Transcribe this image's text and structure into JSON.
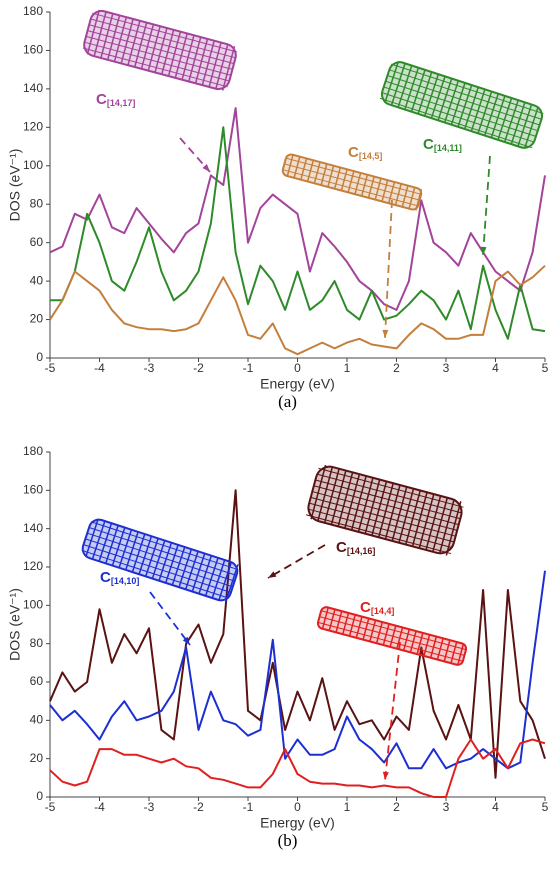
{
  "chart_data": [
    {
      "type": "line",
      "caption": "(a)",
      "x_label": "Energy (eV)",
      "y_label": "DOS (eV⁻¹)",
      "x": [
        -5,
        -4.75,
        -4.5,
        -4.25,
        -4,
        -3.75,
        -3.5,
        -3.25,
        -3,
        -2.75,
        -2.5,
        -2.25,
        -2,
        -1.75,
        -1.5,
        -1.25,
        -1,
        -0.75,
        -0.5,
        -0.25,
        0,
        0.25,
        0.5,
        0.75,
        1,
        1.25,
        1.5,
        1.75,
        2,
        2.25,
        2.5,
        2.75,
        3,
        3.25,
        3.5,
        3.75,
        4,
        4.25,
        4.5,
        4.75,
        5
      ],
      "xlim": [
        -5,
        5
      ],
      "xticks": [
        -5,
        -4,
        -3,
        -2,
        -1,
        0,
        1,
        2,
        3,
        4,
        5
      ],
      "ylim": [
        0,
        180
      ],
      "yticks": [
        0,
        20,
        40,
        60,
        80,
        100,
        120,
        140,
        160,
        180
      ],
      "grid": false,
      "series": [
        {
          "name": "C",
          "name_sub": "[14,17]",
          "color": "#a3449b",
          "values": [
            55,
            58,
            75,
            72,
            85,
            68,
            65,
            78,
            70,
            62,
            55,
            65,
            70,
            95,
            90,
            130,
            60,
            78,
            85,
            80,
            75,
            45,
            65,
            58,
            50,
            40,
            35,
            28,
            25,
            40,
            82,
            60,
            55,
            48,
            65,
            55,
            45,
            40,
            35,
            55,
            95
          ]
        },
        {
          "name": "C",
          "name_sub": "[14,11]",
          "color": "#2f8a2a",
          "values": [
            30,
            30,
            45,
            75,
            60,
            40,
            35,
            50,
            68,
            45,
            30,
            35,
            45,
            70,
            120,
            55,
            28,
            48,
            40,
            25,
            45,
            25,
            30,
            40,
            25,
            20,
            35,
            20,
            22,
            28,
            35,
            30,
            20,
            35,
            15,
            48,
            25,
            10,
            38,
            15,
            14
          ]
        },
        {
          "name": "C",
          "name_sub": "[14,5]",
          "color": "#c47f3c",
          "values": [
            20,
            30,
            45,
            40,
            35,
            25,
            18,
            16,
            15,
            15,
            14,
            15,
            18,
            30,
            42,
            30,
            12,
            10,
            18,
            5,
            2,
            5,
            8,
            5,
            8,
            10,
            7,
            6,
            5,
            12,
            18,
            15,
            10,
            10,
            12,
            12,
            40,
            45,
            38,
            42,
            48
          ]
        }
      ]
    },
    {
      "type": "line",
      "caption": "(b)",
      "x_label": "Energy (eV)",
      "y_label": "DOS (eV⁻¹)",
      "x": [
        -5,
        -4.75,
        -4.5,
        -4.25,
        -4,
        -3.75,
        -3.5,
        -3.25,
        -3,
        -2.75,
        -2.5,
        -2.25,
        -2,
        -1.75,
        -1.5,
        -1.25,
        -1,
        -0.75,
        -0.5,
        -0.25,
        0,
        0.25,
        0.5,
        0.75,
        1,
        1.25,
        1.5,
        1.75,
        2,
        2.25,
        2.5,
        2.75,
        3,
        3.25,
        3.5,
        3.75,
        4,
        4.25,
        4.5,
        4.75,
        5
      ],
      "xlim": [
        -5,
        5
      ],
      "xticks": [
        -5,
        -4,
        -3,
        -2,
        -1,
        0,
        1,
        2,
        3,
        4,
        5
      ],
      "ylim": [
        0,
        180
      ],
      "yticks": [
        0,
        20,
        40,
        60,
        80,
        100,
        120,
        140,
        160,
        180
      ],
      "grid": false,
      "series": [
        {
          "name": "C",
          "name_sub": "[14,16]",
          "color": "#5a1212",
          "values": [
            50,
            65,
            55,
            60,
            98,
            70,
            85,
            75,
            88,
            35,
            30,
            80,
            90,
            70,
            85,
            160,
            45,
            40,
            70,
            35,
            55,
            40,
            62,
            35,
            50,
            38,
            40,
            30,
            42,
            35,
            78,
            45,
            30,
            48,
            30,
            108,
            10,
            108,
            50,
            40,
            20
          ]
        },
        {
          "name": "C",
          "name_sub": "[14,10]",
          "color": "#1c2fd2",
          "values": [
            48,
            40,
            45,
            38,
            30,
            42,
            50,
            40,
            42,
            45,
            55,
            78,
            35,
            55,
            40,
            38,
            32,
            35,
            82,
            20,
            30,
            22,
            22,
            25,
            42,
            30,
            25,
            18,
            28,
            15,
            15,
            25,
            15,
            18,
            20,
            25,
            20,
            15,
            18,
            70,
            118
          ]
        },
        {
          "name": "C",
          "name_sub": "[14,4]",
          "color": "#e02020",
          "values": [
            14,
            8,
            6,
            8,
            25,
            25,
            22,
            22,
            20,
            18,
            20,
            16,
            15,
            10,
            9,
            7,
            5,
            5,
            12,
            25,
            12,
            8,
            7,
            7,
            6,
            6,
            5,
            6,
            5,
            5,
            2,
            0,
            0,
            20,
            30,
            20,
            25,
            15,
            28,
            30,
            28
          ]
        }
      ]
    }
  ]
}
